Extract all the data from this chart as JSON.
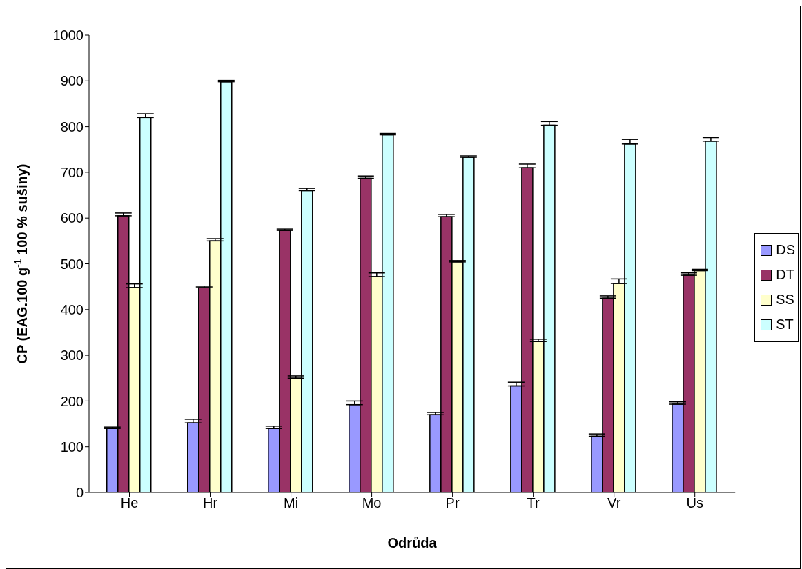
{
  "chart_data": {
    "type": "bar",
    "xlabel": "Odrůda",
    "ylabel": "CP (EAG.100 g$^{-1}$ 100 % sušiny)",
    "categories": [
      "He",
      "Hr",
      "Mi",
      "Mo",
      "Pr",
      "Tr",
      "Vr",
      "Us"
    ],
    "series": [
      {
        "name": "DS",
        "color": "#9999ff",
        "values": [
          140,
          152,
          140,
          192,
          170,
          233,
          123,
          193
        ],
        "errors": [
          [
            140,
            143
          ],
          [
            152,
            160
          ],
          [
            140,
            145
          ],
          [
            192,
            200
          ],
          [
            170,
            175
          ],
          [
            233,
            241
          ],
          [
            123,
            128
          ],
          [
            193,
            198
          ]
        ]
      },
      {
        "name": "DT",
        "color": "#993366",
        "values": [
          605,
          448,
          573,
          687,
          603,
          710,
          425,
          475
        ],
        "errors": [
          [
            605,
            611
          ],
          [
            448,
            451
          ],
          [
            573,
            576
          ],
          [
            687,
            692
          ],
          [
            603,
            608
          ],
          [
            710,
            718
          ],
          [
            425,
            430
          ],
          [
            475,
            480
          ]
        ]
      },
      {
        "name": "SS",
        "color": "#ffffcc",
        "values": [
          448,
          550,
          250,
          472,
          504,
          330,
          457,
          485
        ],
        "errors": [
          [
            448,
            456
          ],
          [
            550,
            555
          ],
          [
            250,
            255
          ],
          [
            472,
            480
          ],
          [
            504,
            507
          ],
          [
            330,
            335
          ],
          [
            457,
            467
          ],
          [
            485,
            488
          ]
        ]
      },
      {
        "name": "ST",
        "color": "#ccffff",
        "values": [
          820,
          898,
          660,
          782,
          733,
          803,
          762,
          768
        ],
        "errors": [
          [
            820,
            828
          ],
          [
            898,
            901
          ],
          [
            660,
            665
          ],
          [
            782,
            785
          ],
          [
            733,
            736
          ],
          [
            803,
            811
          ],
          [
            762,
            772
          ],
          [
            768,
            776
          ]
        ]
      }
    ],
    "ylim": [
      0,
      1000
    ],
    "yticks": [
      0,
      100,
      200,
      300,
      400,
      500,
      600,
      700,
      800,
      900,
      1000
    ],
    "grid": false,
    "legend": "right"
  }
}
